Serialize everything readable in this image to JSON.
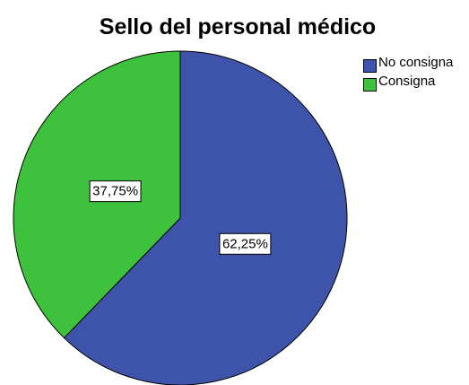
{
  "chart_data": {
    "type": "pie",
    "title": "Sello del personal médico",
    "categories": [
      "No consigna",
      "Consigna"
    ],
    "values": [
      62.25,
      37.75
    ],
    "value_labels": [
      "62,25%",
      "37,75%"
    ],
    "colors": [
      "#3e54ab",
      "#3ec23e"
    ],
    "legend": "top-right"
  }
}
